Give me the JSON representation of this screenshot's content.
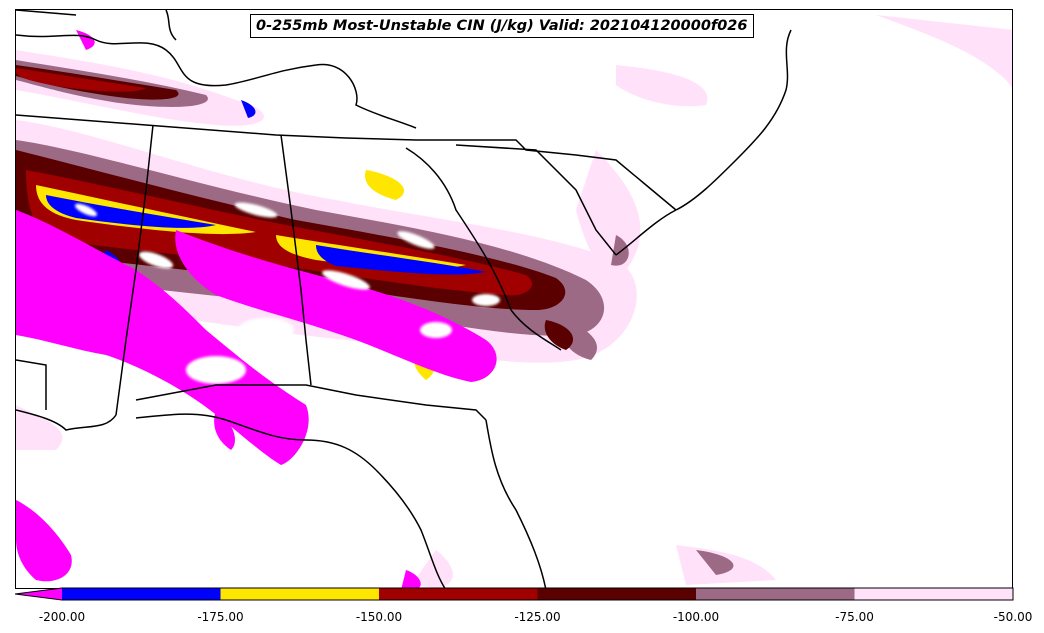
{
  "title": "0-255mb Most-Unstable CIN (J/kg) Valid: 202104120000f026",
  "colorbar": {
    "extend": "min",
    "tick_labels": [
      "-200.00",
      "-175.00",
      "-150.00",
      "-125.00",
      "-100.00",
      "-75.00",
      "-50.00"
    ],
    "bins": [
      {
        "range": "< -200",
        "color": "#ff00ff"
      },
      {
        "range": "-200 to -175",
        "color": "#0000ff"
      },
      {
        "range": "-175 to -150",
        "color": "#ffe600"
      },
      {
        "range": "-150 to -125",
        "color": "#a00000"
      },
      {
        "range": "-125 to -100",
        "color": "#5a0000"
      },
      {
        "range": "-100 to -75",
        "color": "#9c6a85"
      },
      {
        "range": "-75 to -50",
        "color": "#ffe2fa"
      }
    ]
  },
  "map": {
    "region": "Southeastern United States",
    "boundaries": "state and coastline outlines in black",
    "background": "#ffffff"
  }
}
